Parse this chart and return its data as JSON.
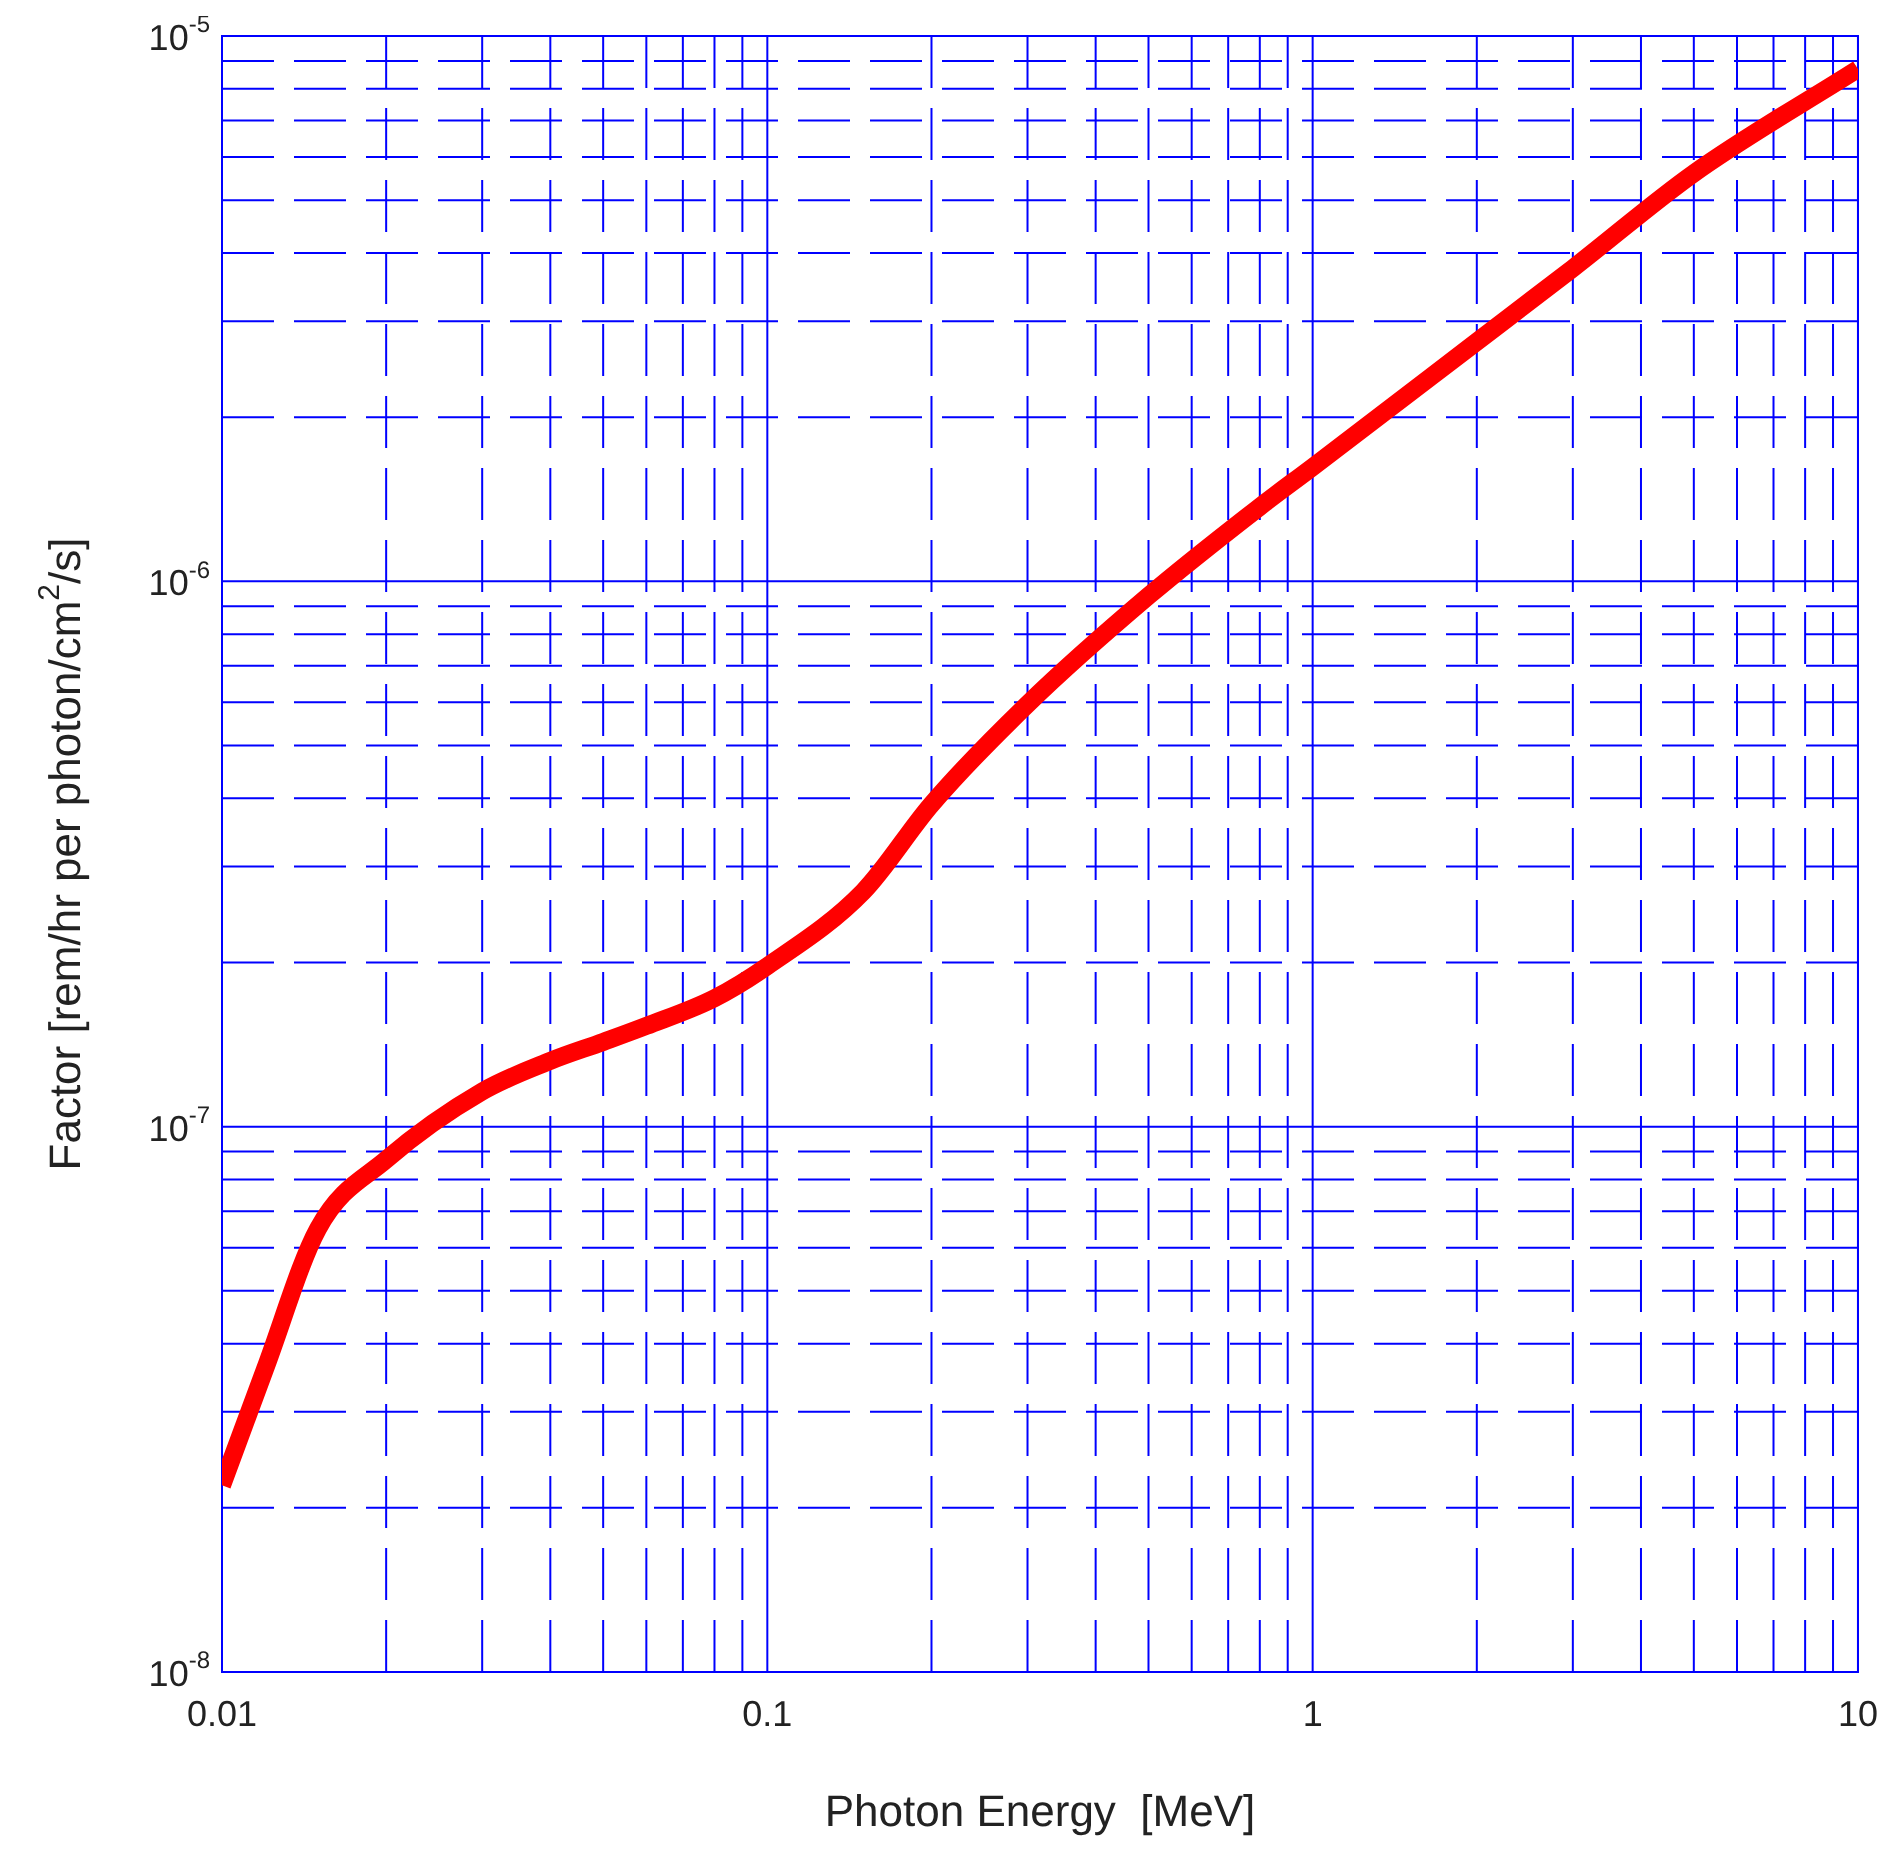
{
  "chart_data": {
    "type": "line",
    "xlabel": "Photon Energy  [MeV]",
    "ylabel": "Factor [rem/hr per photon/cm$^{2}$/s]",
    "x": [
      0.01,
      0.012,
      0.015,
      0.02,
      0.03,
      0.04,
      0.05,
      0.06,
      0.08,
      0.1,
      0.15,
      0.2,
      0.3,
      0.5,
      0.8,
      1,
      2,
      3,
      5,
      10
    ],
    "series": [
      {
        "color": "#ff0000",
        "values": [
          2.2e-08,
          3.6e-08,
          6.5e-08,
          8.7e-08,
          1.16e-07,
          1.32e-07,
          1.43e-07,
          1.53e-07,
          1.72e-07,
          1.97e-07,
          2.7e-07,
          3.9e-07,
          5.95e-07,
          9.4e-07,
          1.37e-06,
          1.62e-06,
          2.75e-06,
          3.75e-06,
          5.6e-06,
          8.7e-06
        ]
      }
    ],
    "log": "xy",
    "xlim": [
      0.01,
      10
    ],
    "ylim": [
      1e-08,
      1e-05
    ],
    "xticks": [
      0.01,
      {
        "value": 0.02,
        "label": null
      },
      {
        "value": 0.03,
        "label": null
      },
      {
        "value": 0.04,
        "label": null
      },
      {
        "value": 0.05,
        "label": null
      },
      {
        "value": 0.06,
        "label": null
      },
      {
        "value": 0.07,
        "label": null
      },
      {
        "value": 0.08,
        "label": null
      },
      {
        "value": 0.09,
        "label": null
      },
      0.1,
      {
        "value": 0.2,
        "label": null
      },
      {
        "value": 0.3,
        "label": null
      },
      {
        "value": 0.4,
        "label": null
      },
      {
        "value": 0.5,
        "label": null
      },
      {
        "value": 0.6,
        "label": null
      },
      {
        "value": 0.7,
        "label": null
      },
      {
        "value": 0.8,
        "label": null
      },
      {
        "value": 0.9,
        "label": null
      },
      1,
      {
        "value": 2,
        "label": null
      },
      {
        "value": 3,
        "label": null
      },
      {
        "value": 4,
        "label": null
      },
      {
        "value": 5,
        "label": null
      },
      {
        "value": 6,
        "label": null
      },
      {
        "value": 7,
        "label": null
      },
      {
        "value": 8,
        "label": null
      },
      {
        "value": 9,
        "label": null
      },
      10
    ],
    "yticks": [
      {
        "value": 1e-08,
        "label": "10$^{-8}$"
      },
      {
        "value": 2e-08,
        "label": null
      },
      {
        "value": 3e-08,
        "label": null
      },
      {
        "value": 4e-08,
        "label": null
      },
      {
        "value": 5e-08,
        "label": null
      },
      {
        "value": 6e-08,
        "label": null
      },
      {
        "value": 7e-08,
        "label": null
      },
      {
        "value": 8e-08,
        "label": null
      },
      {
        "value": 9e-08,
        "label": null
      },
      {
        "value": 1e-07,
        "label": "10$^{-7}$"
      },
      {
        "value": 2e-07,
        "label": null
      },
      {
        "value": 3e-07,
        "label": null
      },
      {
        "value": 4e-07,
        "label": null
      },
      {
        "value": 5e-07,
        "label": null
      },
      {
        "value": 6e-07,
        "label": null
      },
      {
        "value": 7e-07,
        "label": null
      },
      {
        "value": 8e-07,
        "label": null
      },
      {
        "value": 9e-07,
        "label": null
      },
      {
        "value": 1e-06,
        "label": "10$^{-6}$"
      },
      {
        "value": 2e-06,
        "label": null
      },
      {
        "value": 3e-06,
        "label": null
      },
      {
        "value": 4e-06,
        "label": null
      },
      {
        "value": 5e-06,
        "label": null
      },
      {
        "value": 6e-06,
        "label": null
      },
      {
        "value": 7e-06,
        "label": null
      },
      {
        "value": 8e-06,
        "label": null
      },
      {
        "value": 9e-06,
        "label": null
      },
      {
        "value": 1e-05,
        "label": "10$^{-5}$"
      }
    ],
    "grid": true,
    "legend": false,
    "marker": "none",
    "line_style": "solid"
  }
}
